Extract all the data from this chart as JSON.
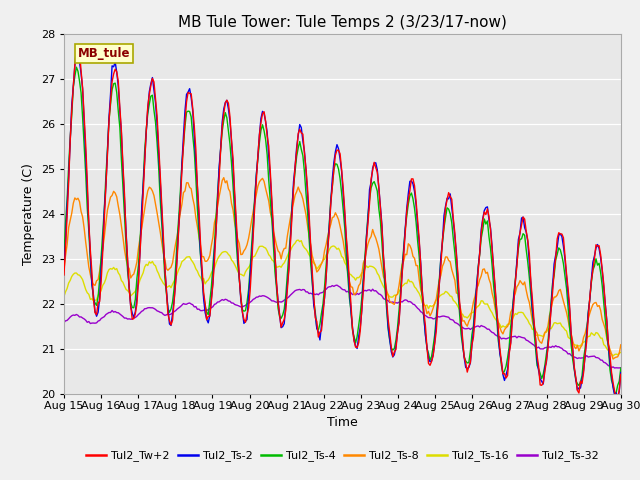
{
  "title": "MB Tule Tower: Tule Temps 2 (3/23/17-now)",
  "xlabel": "Time",
  "ylabel": "Temperature (C)",
  "ylim": [
    20.0,
    28.0
  ],
  "yticks": [
    20.0,
    21.0,
    22.0,
    23.0,
    24.0,
    25.0,
    26.0,
    27.0,
    28.0
  ],
  "xtick_labels": [
    "Aug 15",
    "Aug 16",
    "Aug 17",
    "Aug 18",
    "Aug 19",
    "Aug 20",
    "Aug 21",
    "Aug 22",
    "Aug 23",
    "Aug 24",
    "Aug 25",
    "Aug 26",
    "Aug 27",
    "Aug 28",
    "Aug 29",
    "Aug 30"
  ],
  "fig_bg": "#f0f0f0",
  "plot_bg": "#e8e8e8",
  "grid_color": "#ffffff",
  "series_colors": {
    "Tul2_Tw+2": "#ff0000",
    "Tul2_Ts-2": "#0000ee",
    "Tul2_Ts-4": "#00bb00",
    "Tul2_Ts-8": "#ff8800",
    "Tul2_Ts-16": "#dddd00",
    "Tul2_Ts-32": "#9900cc"
  },
  "legend_label": "MB_tule",
  "title_fontsize": 11,
  "axis_fontsize": 9,
  "tick_fontsize": 8,
  "linewidth": 1.0
}
